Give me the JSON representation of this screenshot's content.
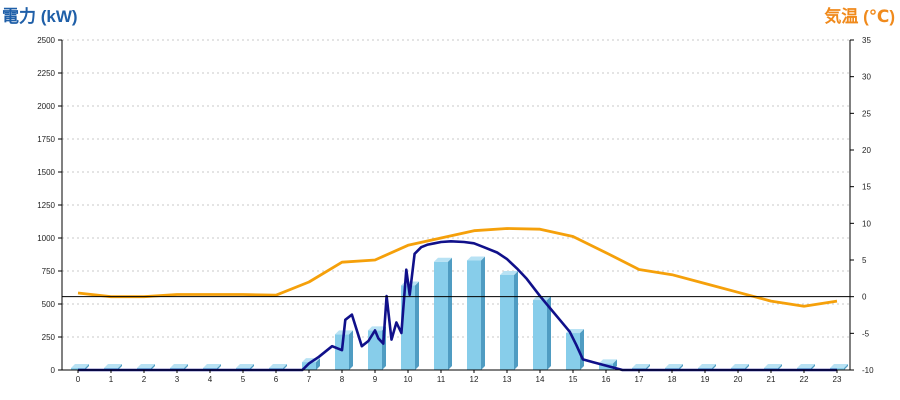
{
  "colors": {
    "left_title": "#1f5fa8",
    "right_title": "#f08a1c",
    "bar_front": "#87cdea",
    "bar_side": "#4f9cc2",
    "bar_top": "#b8e2f4",
    "power_line": "#10108a",
    "temp_line": "#f5a00a",
    "zero_line": "#000000"
  },
  "chart_data": {
    "type": "bar",
    "title_left": "電力 (kW)",
    "title_right": "気温 (℃)",
    "categories": [
      "0",
      "1",
      "2",
      "3",
      "4",
      "5",
      "6",
      "7",
      "8",
      "9",
      "10",
      "11",
      "12",
      "13",
      "14",
      "15",
      "16",
      "17",
      "18",
      "19",
      "20",
      "21",
      "22",
      "23"
    ],
    "y_left": {
      "min": 0,
      "max": 2500,
      "ticks": [
        "0",
        "250",
        "500",
        "750",
        "1000",
        "1250",
        "1500",
        "1750",
        "2000",
        "2250",
        "2500"
      ]
    },
    "y_right": {
      "min": -10,
      "max": 35,
      "ticks": [
        "-10",
        "-5",
        "0",
        "5",
        "10",
        "15",
        "20",
        "25",
        "30",
        "35"
      ]
    },
    "grid": true,
    "series": [
      {
        "kind": "bar",
        "axis": "left",
        "values": [
          15,
          15,
          15,
          15,
          15,
          15,
          15,
          60,
          270,
          300,
          640,
          820,
          830,
          720,
          530,
          280,
          50,
          15,
          15,
          15,
          15,
          15,
          15,
          15
        ]
      },
      {
        "kind": "line",
        "axis": "left",
        "x": [
          0,
          1,
          2,
          3,
          4,
          5,
          6,
          6.8,
          7,
          7.3,
          7.7,
          8,
          8.1,
          8.3,
          8.6,
          8.8,
          9,
          9.1,
          9.25,
          9.35,
          9.5,
          9.65,
          9.8,
          9.95,
          10.05,
          10.2,
          10.4,
          10.6,
          10.8,
          11,
          11.3,
          11.7,
          12,
          12.3,
          12.7,
          13,
          13.3,
          13.6,
          14,
          14.3,
          14.6,
          14.9,
          15.1,
          15.3,
          15.6,
          15.9,
          16.2,
          16.5,
          17,
          18,
          19,
          20,
          21,
          22,
          23
        ],
        "y": [
          0,
          0,
          0,
          0,
          0,
          0,
          0,
          0,
          50,
          100,
          180,
          150,
          380,
          420,
          180,
          220,
          300,
          240,
          200,
          560,
          230,
          360,
          280,
          760,
          570,
          880,
          930,
          950,
          960,
          970,
          975,
          970,
          960,
          930,
          890,
          840,
          770,
          690,
          560,
          470,
          380,
          290,
          190,
          80,
          60,
          40,
          20,
          0,
          0,
          0,
          0,
          0,
          0,
          0,
          0
        ]
      },
      {
        "kind": "line",
        "axis": "right",
        "x": [
          0,
          1,
          2,
          3,
          4,
          5,
          6,
          7,
          8,
          9,
          10,
          11,
          12,
          13,
          14,
          15,
          16,
          17,
          18,
          19,
          20,
          21,
          22,
          23
        ],
        "y": [
          0.5,
          0,
          0,
          0.3,
          0.3,
          0.3,
          0.2,
          2,
          4.7,
          5,
          7,
          8,
          9,
          9.3,
          9.2,
          8.2,
          6,
          3.7,
          3,
          1.8,
          0.6,
          -0.6,
          -1.3,
          -0.6
        ]
      }
    ]
  }
}
